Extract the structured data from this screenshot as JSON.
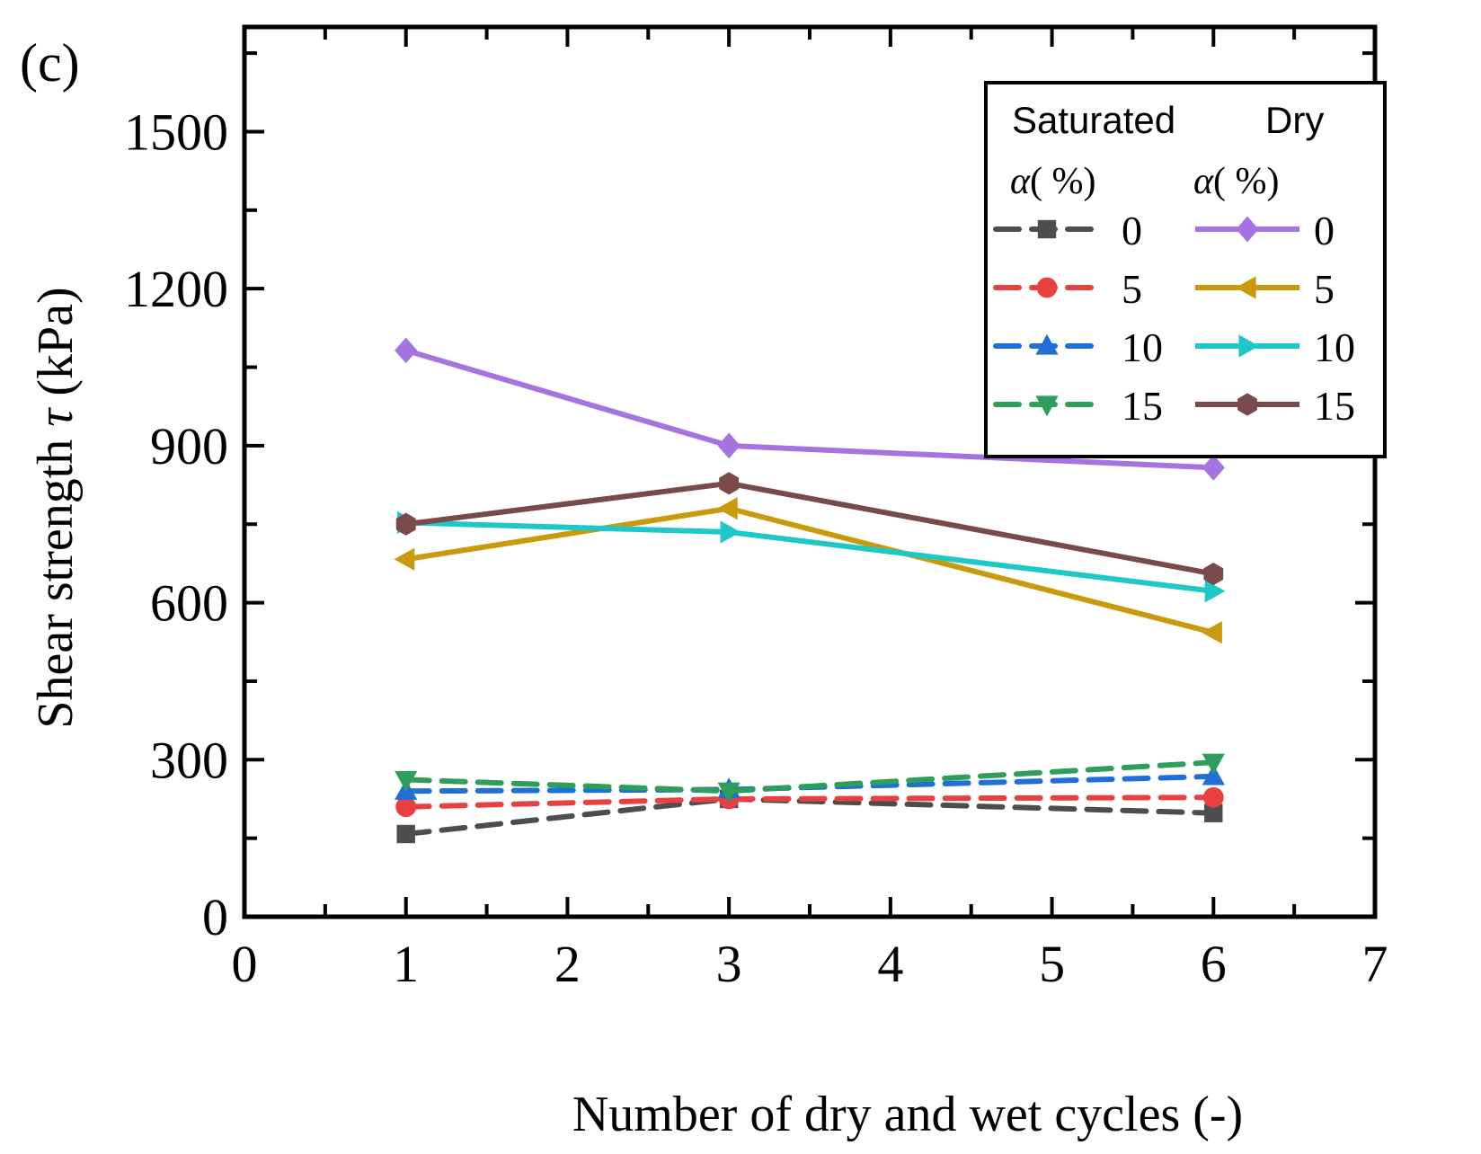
{
  "panel_label": "(c)",
  "chart_data": {
    "type": "line",
    "xlabel": "Number of dry and wet cycles (-)",
    "ylabel_main": "Shear strength ",
    "ylabel_symbol": "τ",
    "ylabel_unit": " (kPa)",
    "xlim": [
      0,
      7
    ],
    "ylim": [
      0,
      1700
    ],
    "xticks": [
      0,
      1,
      2,
      3,
      4,
      5,
      6,
      7
    ],
    "yticks": [
      0,
      300,
      600,
      900,
      1200,
      1500
    ],
    "x": [
      1,
      3,
      6
    ],
    "legend": {
      "position": "top-right",
      "col1_title": "Saturated",
      "col2_title": "Dry",
      "alpha_symbol": "α",
      "alpha_unit": "( %)"
    },
    "series": [
      {
        "name": "0",
        "group": "Saturated",
        "color": "#4d4d4d",
        "marker": "square",
        "dash": true,
        "values": [
          158,
          225,
          198
        ]
      },
      {
        "name": "5",
        "group": "Saturated",
        "color": "#e8403f",
        "marker": "circle",
        "dash": true,
        "values": [
          210,
          225,
          228
        ]
      },
      {
        "name": "10",
        "group": "Saturated",
        "color": "#1f6fd6",
        "marker": "triangle-up",
        "dash": true,
        "values": [
          240,
          243,
          268
        ]
      },
      {
        "name": "15",
        "group": "Saturated",
        "color": "#2e9e5b",
        "marker": "triangle-down",
        "dash": true,
        "values": [
          262,
          240,
          295
        ]
      },
      {
        "name": "0",
        "group": "Dry",
        "color": "#a574e0",
        "marker": "diamond",
        "dash": false,
        "values": [
          1082,
          900,
          858
        ]
      },
      {
        "name": "5",
        "group": "Dry",
        "color": "#c99a0c",
        "marker": "triangle-left",
        "dash": false,
        "values": [
          683,
          780,
          543
        ]
      },
      {
        "name": "10",
        "group": "Dry",
        "color": "#1ec8c8",
        "marker": "triangle-right",
        "dash": false,
        "values": [
          753,
          735,
          622
        ]
      },
      {
        "name": "15",
        "group": "Dry",
        "color": "#7a4a4a",
        "marker": "hexagon",
        "dash": false,
        "values": [
          750,
          828,
          655
        ]
      }
    ]
  }
}
